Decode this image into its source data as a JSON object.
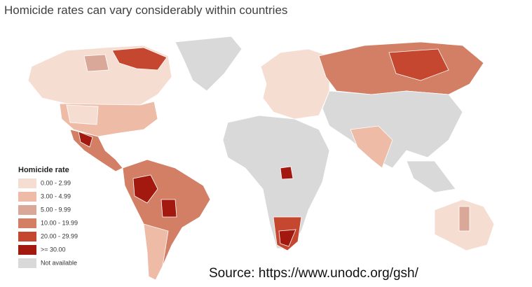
{
  "title": "Homicide rates can vary considerably within countries",
  "legend": {
    "title": "Homicide rate",
    "items": [
      {
        "label": "0.00 - 2.99",
        "color": "#f6ddd2"
      },
      {
        "label": "3.00 - 4.99",
        "color": "#eebba6"
      },
      {
        "label": "5.00 - 9.99",
        "color": "#d9a898"
      },
      {
        "label": "10.00 - 19.99",
        "color": "#d27f66"
      },
      {
        "label": "20.00 - 29.99",
        "color": "#c6472f"
      },
      {
        "label": ">= 30.00",
        "color": "#a3180f"
      },
      {
        "label": "Not available",
        "color": "#d9d9d9"
      }
    ]
  },
  "source": "Source: https://www.unodc.org/gsh/"
}
